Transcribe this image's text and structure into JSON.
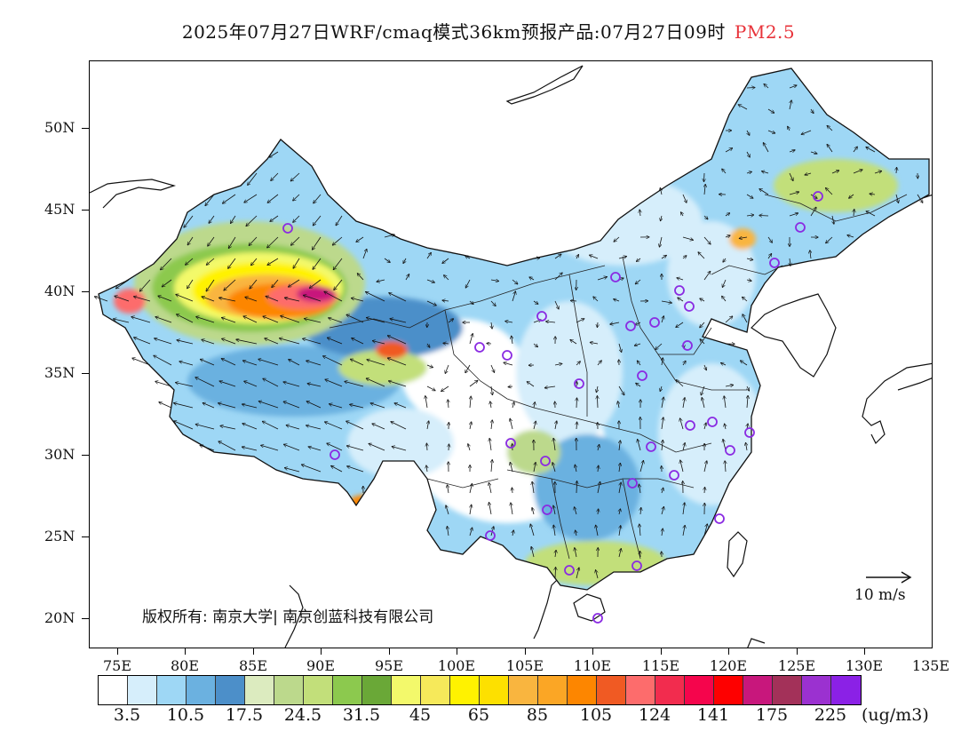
{
  "title": {
    "main": "2025年07月27日WRF/cmaq模式36km预报产品:07月27日09时",
    "variable": "PM2.5"
  },
  "axes": {
    "lat_labels": [
      "50N",
      "45N",
      "40N",
      "35N",
      "30N",
      "25N",
      "20N"
    ],
    "lat_values": [
      50,
      45,
      40,
      35,
      30,
      25,
      20
    ],
    "lon_labels": [
      "75E",
      "80E",
      "85E",
      "90E",
      "95E",
      "100E",
      "105E",
      "110E",
      "115E",
      "120E",
      "125E",
      "130E",
      "135E"
    ],
    "lon_values": [
      75,
      80,
      85,
      90,
      95,
      100,
      105,
      110,
      115,
      120,
      125,
      130,
      135
    ],
    "lon_range": [
      73,
      135
    ],
    "lat_range": [
      18,
      54
    ]
  },
  "copyright": "版权所有: 南京大学| 南京创蓝科技有限公司",
  "wind_reference": "10 m/s",
  "colorbar": {
    "colors": [
      "#ffffff",
      "#d6eefb",
      "#9ed7f5",
      "#6bb1e0",
      "#4c8fc9",
      "#dcebbf",
      "#bcd98c",
      "#c2df7a",
      "#8cc94e",
      "#6aa837",
      "#f3f96b",
      "#f6e95a",
      "#fff200",
      "#fde000",
      "#f9b53f",
      "#fba625",
      "#fd8600",
      "#f05a23",
      "#fd6c6c",
      "#f22c4e",
      "#f5054c",
      "#fe0000",
      "#c8177c",
      "#a33159",
      "#9b31d0",
      "#8b21e6"
    ],
    "labels": [
      "3.5",
      "10.5",
      "17.5",
      "24.5",
      "31.5",
      "45",
      "65",
      "85",
      "105",
      "124",
      "141",
      "175",
      "225"
    ],
    "unit": "(ug/m3)"
  },
  "legend_colors": {
    "station_marker": "#8a2be2",
    "wind_arrow": "#111111"
  }
}
